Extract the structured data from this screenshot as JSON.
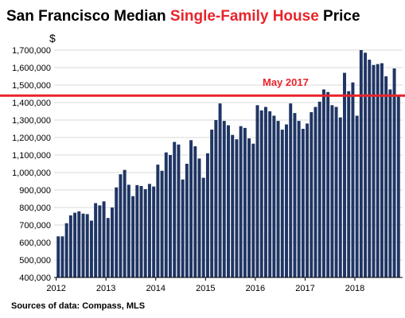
{
  "chart_data": {
    "type": "bar",
    "title_parts": [
      {
        "text": "San Francisco Median ",
        "color": "#000000"
      },
      {
        "text": "Single-Family House",
        "color": "#e8242b"
      },
      {
        "text": " Price",
        "color": "#000000"
      }
    ],
    "y_unit": "$",
    "ylim": [
      400000,
      1750000
    ],
    "y_ticks": [
      400000,
      500000,
      600000,
      700000,
      800000,
      900000,
      1000000,
      1100000,
      1200000,
      1300000,
      1400000,
      1500000,
      1600000,
      1700000
    ],
    "y_tick_labels": [
      "400,000",
      "500,000",
      "600,000",
      "700,000",
      "800,000",
      "900,000",
      "1,000,000",
      "1,100,000",
      "1,200,000",
      "1,300,000",
      "1,400,000",
      "1,500,000",
      "1,600,000",
      "1,700,000"
    ],
    "x_ticks": [
      "2012",
      "2013",
      "2014",
      "2015",
      "2016",
      "2017",
      "2018"
    ],
    "grid": true,
    "bar_color": "#1f3564",
    "start": "2012-01",
    "values": [
      635000,
      635000,
      710000,
      755000,
      770000,
      778000,
      765000,
      762000,
      725000,
      825000,
      812000,
      835000,
      740000,
      800000,
      915000,
      990000,
      1015000,
      930000,
      865000,
      928000,
      923000,
      905000,
      935000,
      920000,
      1045000,
      1010000,
      1115000,
      1100000,
      1175000,
      1160000,
      960000,
      1050000,
      1185000,
      1150000,
      1080000,
      970000,
      1110000,
      1245000,
      1300000,
      1395000,
      1295000,
      1270000,
      1215000,
      1190000,
      1265000,
      1255000,
      1195000,
      1165000,
      1385000,
      1355000,
      1375000,
      1350000,
      1325000,
      1295000,
      1245000,
      1275000,
      1395000,
      1340000,
      1295000,
      1250000,
      1280000,
      1345000,
      1375000,
      1405000,
      1475000,
      1460000,
      1385000,
      1375000,
      1315000,
      1570000,
      1465000,
      1515000,
      1325000,
      1700000,
      1685000,
      1645000,
      1615000,
      1620000,
      1625000,
      1550000,
      1475000,
      1595000,
      1445000
    ],
    "reference_line": {
      "value": 1440000,
      "label": "May 2017",
      "color": "#e8242b"
    },
    "source": "Sources of data: Compass, MLS"
  }
}
